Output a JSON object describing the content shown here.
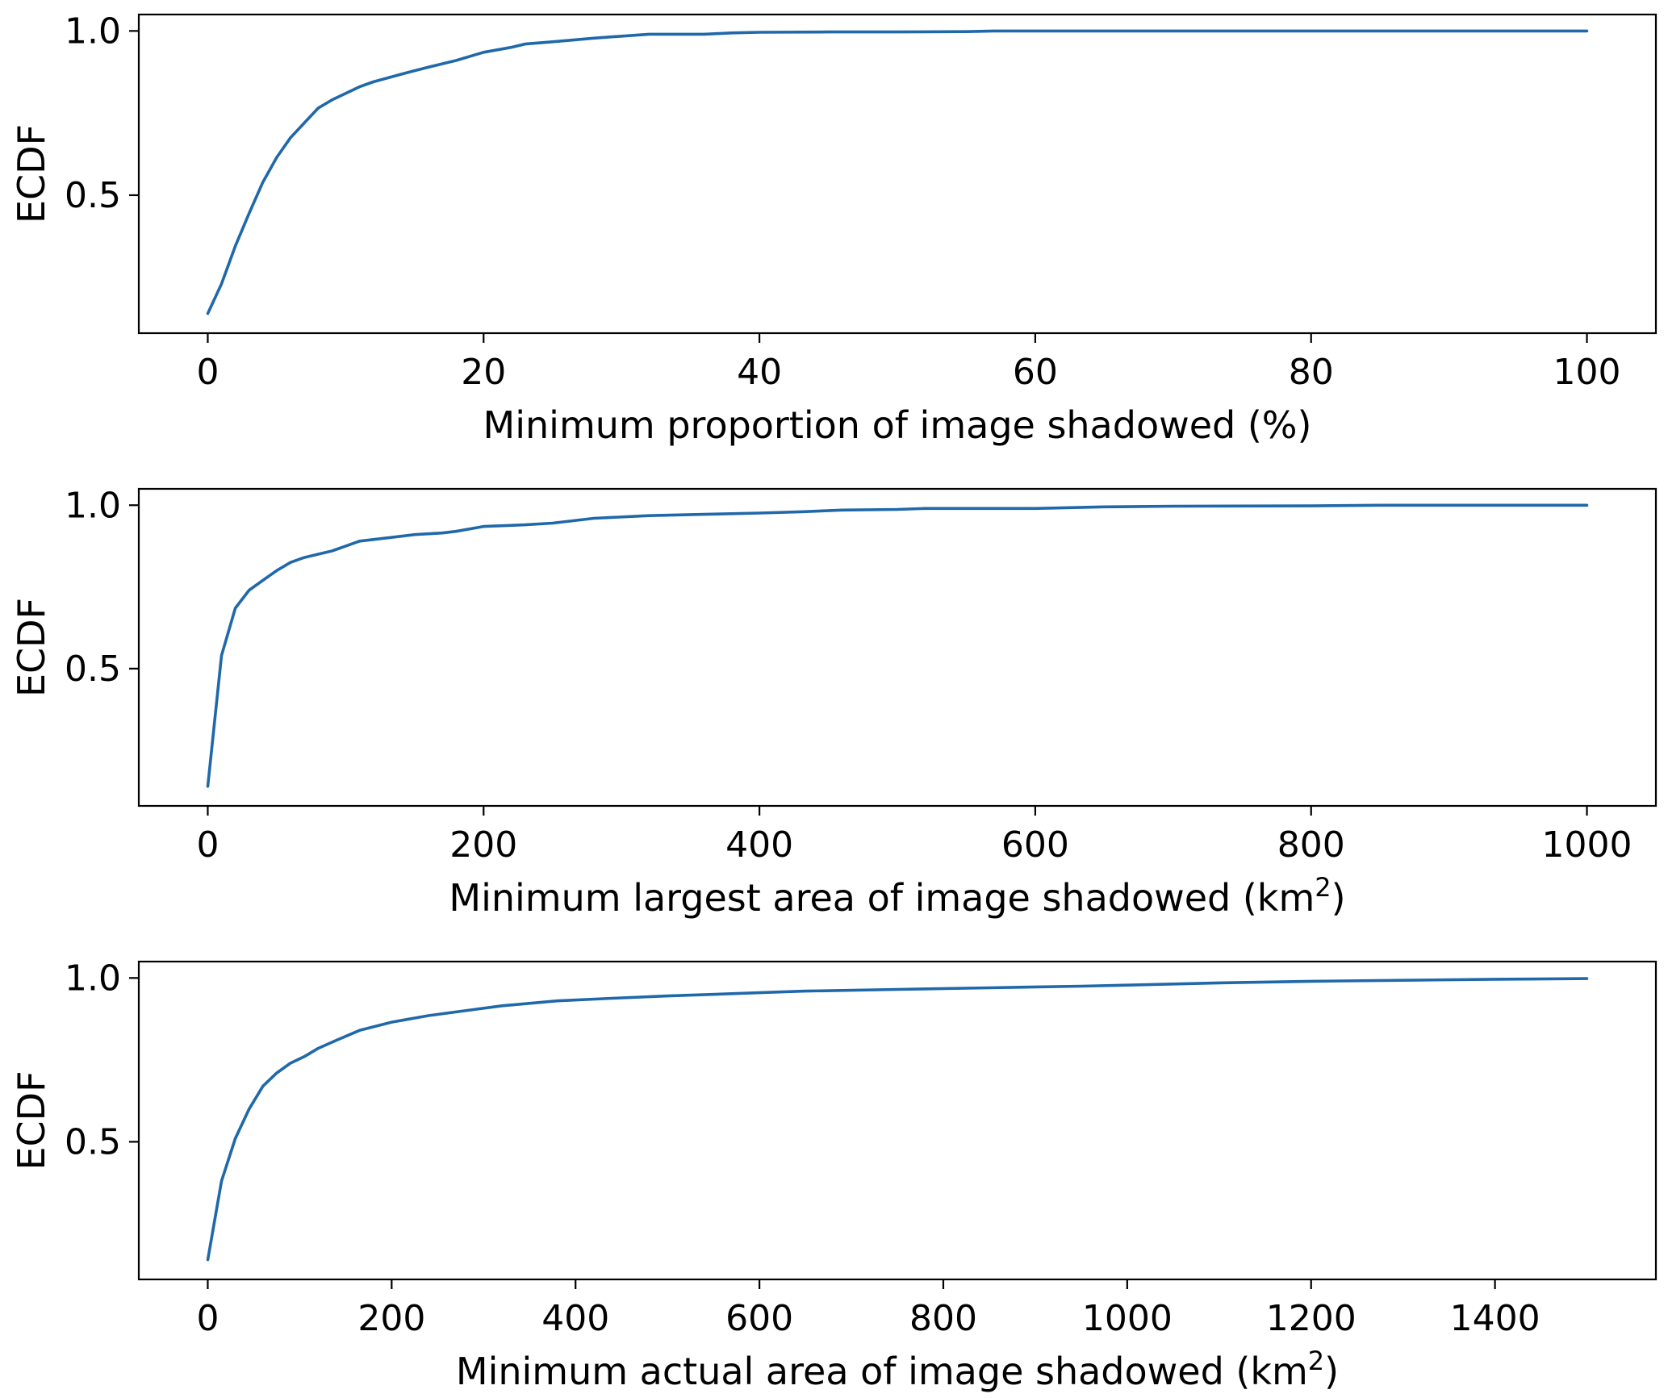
{
  "chart_data": [
    {
      "type": "line",
      "xlabel": "Minimum proportion of image shadowed (%)",
      "ylabel": "ECDF",
      "xlim": [
        -5,
        105
      ],
      "ylim": [
        0.08,
        1.05
      ],
      "xticks": [
        0,
        20,
        40,
        60,
        80,
        100
      ],
      "xtick_labels": [
        "0",
        "20",
        "40",
        "60",
        "80",
        "100"
      ],
      "yticks": [
        0.5,
        1.0
      ],
      "ytick_labels": [
        "0.5",
        "1.0"
      ],
      "grid": false,
      "series": [
        {
          "color": "#1f68a9",
          "x": [
            0,
            1,
            2,
            3,
            4,
            5,
            6,
            7,
            8,
            9,
            10,
            11,
            12,
            14,
            16,
            18,
            20,
            22,
            23,
            25,
            28,
            32,
            36,
            38,
            40,
            45,
            50,
            55,
            57,
            60,
            70,
            80,
            90,
            100
          ],
          "y": [
            0.14,
            0.23,
            0.345,
            0.445,
            0.54,
            0.615,
            0.675,
            0.72,
            0.765,
            0.79,
            0.81,
            0.83,
            0.845,
            0.868,
            0.89,
            0.91,
            0.935,
            0.95,
            0.96,
            0.967,
            0.978,
            0.99,
            0.99,
            0.994,
            0.996,
            0.997,
            0.997,
            0.998,
            1.0,
            1.0,
            1.0,
            1.0,
            1.0,
            1.0
          ]
        }
      ]
    },
    {
      "type": "line",
      "xlabel": "Minimum largest area of image shadowed (km",
      "xlabel_sup": "2",
      "xlabel_end": ")",
      "ylabel": "ECDF",
      "xlim": [
        -50,
        1050
      ],
      "ylim": [
        0.08,
        1.05
      ],
      "xticks": [
        0,
        200,
        400,
        600,
        800,
        1000
      ],
      "xtick_labels": [
        "0",
        "200",
        "400",
        "600",
        "800",
        "1000"
      ],
      "yticks": [
        0.5,
        1.0
      ],
      "ytick_labels": [
        "0.5",
        "1.0"
      ],
      "grid": false,
      "series": [
        {
          "color": "#1f68a9",
          "x": [
            0,
            10,
            20,
            30,
            40,
            50,
            60,
            70,
            80,
            90,
            100,
            110,
            130,
            150,
            170,
            180,
            200,
            230,
            250,
            280,
            320,
            360,
            400,
            430,
            460,
            500,
            520,
            600,
            650,
            700,
            800,
            850,
            1000
          ],
          "y": [
            0.14,
            0.54,
            0.685,
            0.74,
            0.77,
            0.8,
            0.825,
            0.84,
            0.85,
            0.86,
            0.875,
            0.89,
            0.9,
            0.91,
            0.915,
            0.92,
            0.935,
            0.94,
            0.945,
            0.96,
            0.968,
            0.972,
            0.976,
            0.98,
            0.985,
            0.987,
            0.99,
            0.99,
            0.995,
            0.997,
            0.998,
            1.0,
            1.0
          ]
        }
      ]
    },
    {
      "type": "line",
      "xlabel": "Minimum actual area of image shadowed (km",
      "xlabel_sup": "2",
      "xlabel_end": ")",
      "ylabel": "ECDF",
      "xlim": [
        -75,
        1575
      ],
      "ylim": [
        0.08,
        1.05
      ],
      "xticks": [
        0,
        200,
        400,
        600,
        800,
        1000,
        1200,
        1400
      ],
      "xtick_labels": [
        "0",
        "200",
        "400",
        "600",
        "800",
        "1000",
        "1200",
        "1400"
      ],
      "yticks": [
        0.5,
        1.0
      ],
      "ytick_labels": [
        "0.5",
        "1.0"
      ],
      "grid": false,
      "series": [
        {
          "color": "#1f68a9",
          "x": [
            0,
            15,
            30,
            45,
            60,
            75,
            90,
            105,
            120,
            140,
            165,
            200,
            240,
            280,
            320,
            380,
            440,
            500,
            600,
            650,
            750,
            850,
            950,
            1000,
            1100,
            1200,
            1300,
            1400,
            1500
          ],
          "y": [
            0.14,
            0.38,
            0.51,
            0.6,
            0.67,
            0.71,
            0.74,
            0.76,
            0.785,
            0.81,
            0.84,
            0.865,
            0.885,
            0.9,
            0.915,
            0.93,
            0.938,
            0.945,
            0.955,
            0.96,
            0.965,
            0.97,
            0.975,
            0.978,
            0.985,
            0.99,
            0.993,
            0.996,
            0.998
          ]
        }
      ]
    }
  ]
}
